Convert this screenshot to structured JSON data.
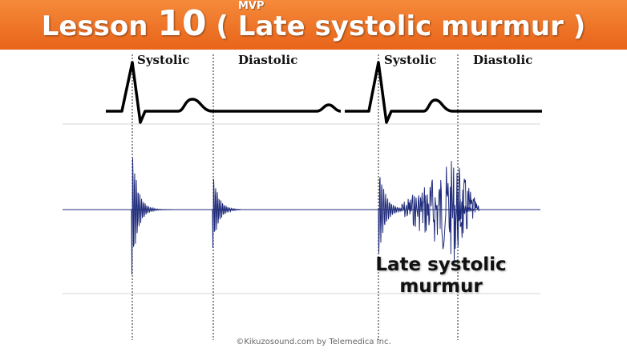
{
  "header": {
    "title_prefix": "Lesson",
    "lesson_number": "10",
    "title_main": "( Late systolic murmur )",
    "superscript": "MVP",
    "background_color": "#ee7428"
  },
  "phase_labels": [
    "Systolic",
    "Diastolic",
    "Systolic",
    "Diastolic"
  ],
  "annotation": {
    "line1": "Late systolic",
    "line2": "murmur"
  },
  "copyright": "©Kikuzosound.com by Telemedica Inc."
}
